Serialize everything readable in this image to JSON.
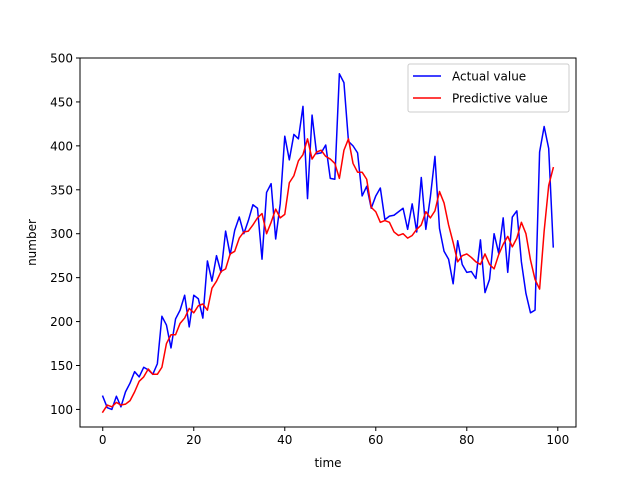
{
  "chart_data": {
    "type": "line",
    "xlabel": "time",
    "ylabel": "number",
    "xlim": [
      -5,
      104
    ],
    "ylim": [
      80,
      500
    ],
    "xticks": [
      0,
      20,
      40,
      60,
      80,
      100
    ],
    "yticks": [
      100,
      150,
      200,
      250,
      300,
      350,
      400,
      450,
      500
    ],
    "grid": false,
    "legend": "upper-right",
    "series": [
      {
        "name": "Actual value",
        "color": "#0000ff",
        "x": [
          0,
          1,
          2,
          3,
          4,
          5,
          6,
          7,
          8,
          9,
          10,
          11,
          12,
          13,
          14,
          15,
          16,
          17,
          18,
          19,
          20,
          21,
          22,
          23,
          24,
          25,
          26,
          27,
          28,
          29,
          30,
          31,
          32,
          33,
          34,
          35,
          36,
          37,
          38,
          39,
          40,
          41,
          42,
          43,
          44,
          45,
          46,
          47,
          48,
          49,
          50,
          51,
          52,
          53,
          54,
          55,
          56,
          57,
          58,
          59,
          60,
          61,
          62,
          63,
          64,
          65,
          66,
          67,
          68,
          69,
          70,
          71,
          72,
          73,
          74,
          75,
          76,
          77,
          78,
          79,
          80,
          81,
          82,
          83,
          84,
          85,
          86,
          87,
          88,
          89,
          90,
          91,
          92,
          93,
          94,
          95,
          96,
          97,
          98,
          99
        ],
        "values": [
          115,
          102,
          100,
          115,
          103,
          120,
          130,
          143,
          137,
          148,
          145,
          140,
          152,
          206,
          196,
          170,
          203,
          213,
          230,
          194,
          230,
          226,
          204,
          269,
          246,
          275,
          256,
          303,
          276,
          304,
          319,
          300,
          315,
          333,
          329,
          271,
          347,
          357,
          294,
          334,
          411,
          384,
          413,
          408,
          445,
          340,
          435,
          391,
          392,
          401,
          363,
          362,
          482,
          472,
          405,
          400,
          392,
          343,
          354,
          329,
          343,
          352,
          316,
          320,
          321,
          325,
          329,
          305,
          334,
          302,
          364,
          305,
          342,
          388,
          306,
          280,
          271,
          243,
          292,
          265,
          256,
          257,
          249,
          293,
          233,
          248,
          300,
          278,
          318,
          256,
          319,
          326,
          268,
          232,
          210,
          213,
          393,
          422,
          397,
          285
        ]
      },
      {
        "name": "Predictive value",
        "color": "#ff0000",
        "x": [
          0,
          1,
          2,
          3,
          4,
          5,
          6,
          7,
          8,
          9,
          10,
          11,
          12,
          13,
          14,
          15,
          16,
          17,
          18,
          19,
          20,
          21,
          22,
          23,
          24,
          25,
          26,
          27,
          28,
          29,
          30,
          31,
          32,
          33,
          34,
          35,
          36,
          37,
          38,
          39,
          40,
          41,
          42,
          43,
          44,
          45,
          46,
          47,
          48,
          49,
          50,
          51,
          52,
          53,
          54,
          55,
          56,
          57,
          58,
          59,
          60,
          61,
          62,
          63,
          64,
          65,
          66,
          67,
          68,
          69,
          70,
          71,
          72,
          73,
          74,
          75,
          76,
          77,
          78,
          79,
          80,
          81,
          82,
          83,
          84,
          85,
          86,
          87,
          88,
          89,
          90,
          91,
          92,
          93,
          94,
          95,
          96,
          97,
          98,
          99
        ],
        "values": [
          97,
          105,
          103,
          108,
          105,
          106,
          110,
          120,
          132,
          137,
          146,
          140,
          140,
          148,
          175,
          185,
          185,
          198,
          204,
          215,
          210,
          218,
          220,
          213,
          238,
          246,
          257,
          260,
          277,
          280,
          295,
          302,
          303,
          310,
          318,
          323,
          300,
          313,
          328,
          318,
          322,
          358,
          366,
          383,
          390,
          408,
          385,
          393,
          395,
          388,
          385,
          380,
          363,
          395,
          408,
          380,
          370,
          370,
          362,
          330,
          325,
          313,
          315,
          313,
          302,
          298,
          300,
          295,
          298,
          305,
          310,
          325,
          318,
          326,
          348,
          335,
          310,
          290,
          268,
          275,
          277,
          273,
          268,
          265,
          277,
          265,
          260,
          276,
          288,
          297,
          285,
          295,
          313,
          300,
          270,
          248,
          237,
          303,
          355,
          375
        ]
      }
    ]
  }
}
